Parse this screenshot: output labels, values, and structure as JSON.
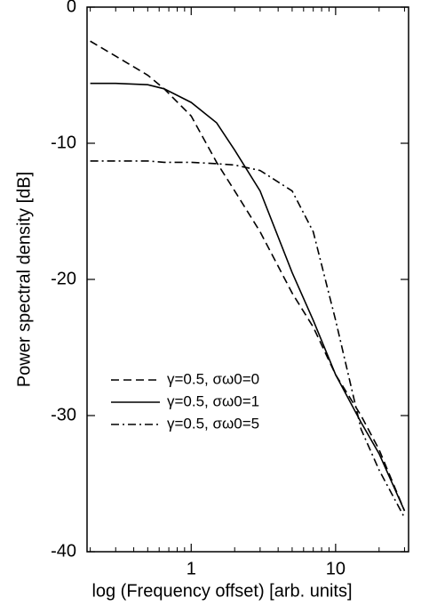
{
  "chart_data": {
    "type": "line",
    "xlabel": "log (Frequency offset) [arb. units]",
    "ylabel": "Power spectral density [dB]",
    "xscale": "log",
    "x": [
      0.2,
      0.3,
      0.5,
      0.65,
      1,
      1.5,
      2,
      3,
      5,
      7,
      10,
      15,
      20,
      30
    ],
    "series": [
      {
        "name": "γ=0.5, σω0=0",
        "color": "#000000",
        "dash": "dashed",
        "values": [
          -2.5,
          -3.6,
          -5.0,
          -6.0,
          -8.0,
          -11.4,
          -13.5,
          -16.5,
          -21.0,
          -23.5,
          -27.0,
          -30.0,
          -32.5,
          -37.0
        ]
      },
      {
        "name": "γ=0.5, σω0=1",
        "color": "#000000",
        "dash": "solid",
        "values": [
          -5.6,
          -5.6,
          -5.7,
          -6.0,
          -7.0,
          -8.5,
          -10.5,
          -13.5,
          -19.5,
          -23.0,
          -27.0,
          -30.5,
          -32.8,
          -37.0
        ]
      },
      {
        "name": "γ=0.5, σω0=5",
        "color": "#000000",
        "dash": "dashdot",
        "values": [
          -11.3,
          -11.3,
          -11.3,
          -11.4,
          -11.4,
          -11.5,
          -11.6,
          -12.0,
          -13.5,
          -16.5,
          -23.0,
          -31.0,
          -34.0,
          -37.5
        ]
      }
    ],
    "xlim": [
      0.19,
      32
    ],
    "ylim": [
      -40,
      0
    ],
    "xticks": [
      1,
      10
    ],
    "xminorticks": [
      0.2,
      0.3,
      0.4,
      0.5,
      0.6,
      0.7,
      0.8,
      0.9,
      2,
      3,
      4,
      5,
      6,
      7,
      8,
      9,
      20,
      30
    ],
    "yticks": [
      -40,
      -30,
      -20,
      -10,
      0
    ],
    "legend": "lower left"
  }
}
